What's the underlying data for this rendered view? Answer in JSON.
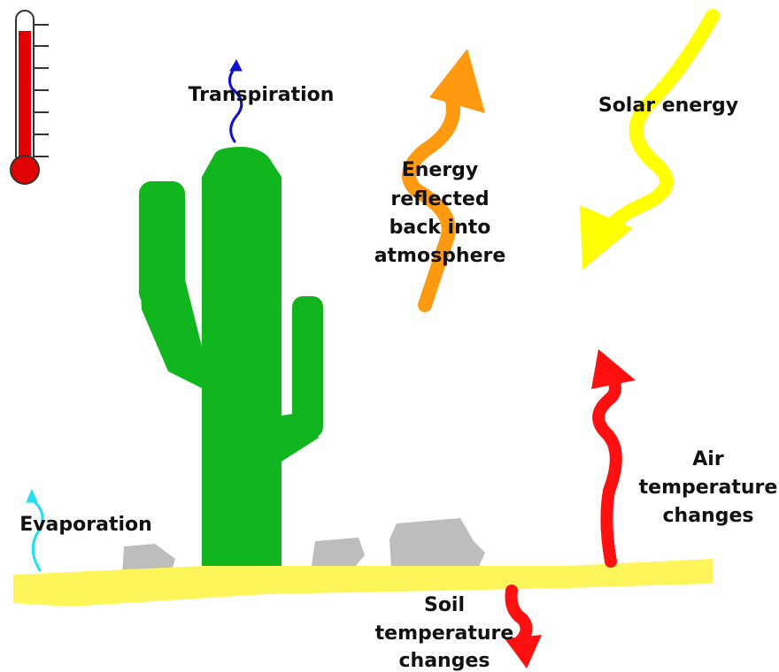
{
  "labels": {
    "transpiration": "Transpiration",
    "solar_energy": "Solar energy",
    "reflected": [
      "Energy",
      "reflected",
      "back into",
      "atmosphere"
    ],
    "evaporation": "Evaporation",
    "air_temperature": [
      "Air",
      "temperature",
      "changes"
    ],
    "soil_temperature": [
      "Soil",
      "temperature",
      "changes"
    ]
  }
}
